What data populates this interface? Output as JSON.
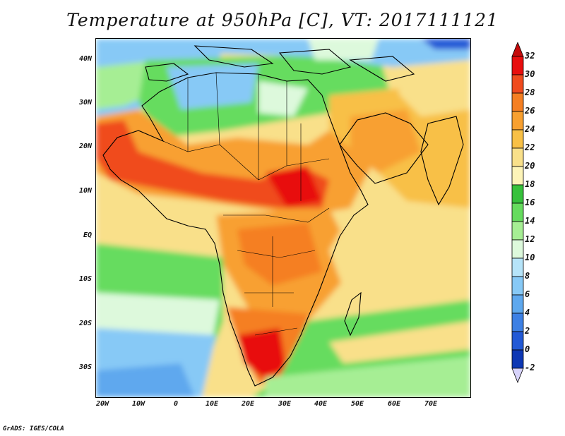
{
  "title": "Temperature at 950hPa [C], VT: 2017111121",
  "credit": "GrADS: IGES/COLA",
  "map": {
    "region": "Africa and surrounding oceans",
    "projection": "lat-lon",
    "lon_range": [
      -23,
      80
    ],
    "lat_range": [
      -38,
      45
    ],
    "lat_ticks": [
      "40N",
      "30N",
      "20N",
      "10N",
      "EQ",
      "10S",
      "20S",
      "30S"
    ],
    "lon_ticks": [
      "20W",
      "10W",
      "0",
      "10E",
      "20E",
      "30E",
      "40E",
      "50E",
      "60E",
      "70E"
    ]
  },
  "colorbar": {
    "labels": [
      "32",
      "30",
      "28",
      "26",
      "24",
      "22",
      "20",
      "18",
      "16",
      "14",
      "12",
      "10",
      "8",
      "6",
      "4",
      "2",
      "0",
      "-2"
    ],
    "colors": [
      "#e80e0e",
      "#f04b1e",
      "#f57f22",
      "#f8a030",
      "#f8c046",
      "#f9e08a",
      "#fdf4b8",
      "#37c13c",
      "#66dc5e",
      "#a6ee94",
      "#ddf9dc",
      "#b6e4f9",
      "#87c9f6",
      "#5ea8ee",
      "#3d80e4",
      "#2259d6",
      "#0d37b4",
      "#06157a"
    ],
    "over_color": "#c40a0a",
    "under_color": "#d7d3fb"
  }
}
